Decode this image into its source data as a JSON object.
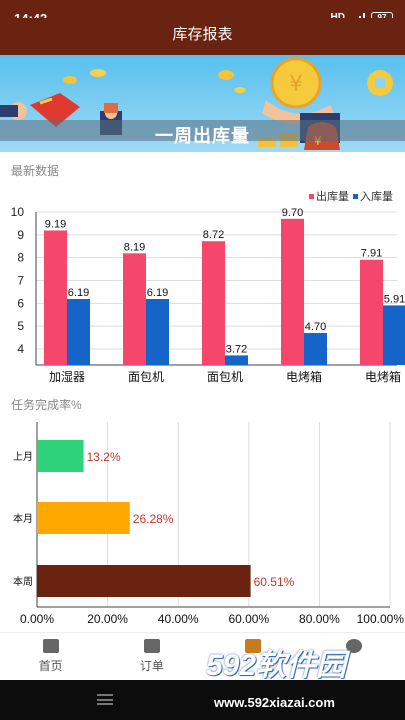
{
  "status": {
    "time": "14:42",
    "hd": "HD",
    "signal": "4G",
    "battery": "97"
  },
  "header": {
    "title": "库存报表"
  },
  "banner": {
    "title": "一周出库量"
  },
  "section1": {
    "label": "最新数据"
  },
  "section2": {
    "label": "任务完成率%"
  },
  "colors": {
    "out": "#f4476b",
    "in": "#1565c9",
    "last_month": "#2ed37a",
    "this_month": "#ffa800",
    "this_week": "#6b2311",
    "header_bg": "#6b2311",
    "value_text": "#c0392b"
  },
  "chart_data": [
    {
      "type": "bar",
      "title": "",
      "categories": [
        "加湿器",
        "面包机",
        "面包机",
        "电烤箱",
        "电烤箱"
      ],
      "series": [
        {
          "name": "出库量",
          "values": [
            9.19,
            8.19,
            8.72,
            9.7,
            7.91
          ]
        },
        {
          "name": "入库量",
          "values": [
            6.19,
            6.19,
            3.72,
            4.7,
            5.91
          ]
        }
      ],
      "yticks": [
        "10",
        "9",
        "8",
        "7",
        "6",
        "5",
        "4"
      ],
      "ylim": [
        3.3,
        10
      ],
      "legend": "top-right",
      "grid": true
    },
    {
      "type": "bar",
      "orientation": "horizontal",
      "title": "任务完成率%",
      "categories": [
        "上月",
        "本月",
        "本周"
      ],
      "values": [
        13.2,
        26.28,
        60.51
      ],
      "value_labels": [
        "13.2%",
        "26.28%",
        "60.51%"
      ],
      "xticks": [
        "0.00%",
        "20.00%",
        "40.00%",
        "60.00%",
        "80.00%",
        "100.00%"
      ],
      "xlim": [
        0,
        100
      ],
      "grid": true
    }
  ],
  "nav": {
    "items": [
      {
        "label": "首页",
        "icon": "home-icon"
      },
      {
        "label": "订单",
        "icon": "order-icon"
      },
      {
        "label": "",
        "icon": "report-icon"
      },
      {
        "label": "",
        "icon": "profile-icon"
      }
    ]
  },
  "watermark": {
    "brand": "592软件园",
    "url": "www.592xiazai.com"
  }
}
